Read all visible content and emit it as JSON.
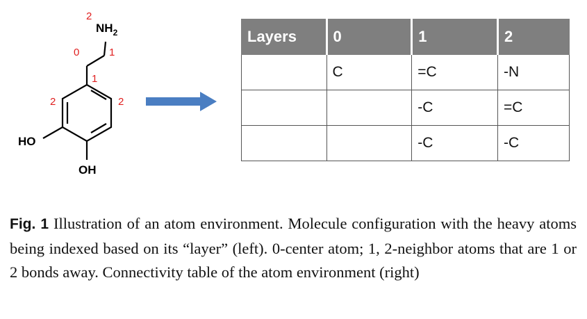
{
  "molecule": {
    "atoms": {
      "amine": "NH",
      "amine_sub": "2",
      "hydroxyl_left": "HO",
      "hydroxyl_bottom": "OH"
    },
    "layer_indices": {
      "n": "2",
      "ch2_top": "1",
      "ch2_left": "0",
      "ring_ipso": "1",
      "ring_left": "2",
      "ring_right": "2"
    }
  },
  "colors": {
    "index_red": "#e02020",
    "arrow_blue": "#4a7ec2",
    "header_gray": "#7f7f7f"
  },
  "table": {
    "headers": [
      "Layers",
      "0",
      "1",
      "2"
    ],
    "rows": [
      [
        "",
        "C",
        "=C",
        "-N"
      ],
      [
        "",
        "",
        "-C",
        "=C"
      ],
      [
        "",
        "",
        "-C",
        "-C"
      ]
    ]
  },
  "caption": {
    "label": "Fig. 1",
    "text": "Illustration of an atom environment. Molecule configuration with the heavy atoms being indexed based on its “layer” (left). 0-center atom; 1, 2-neighbor atoms that are 1 or 2 bonds away. Connectivity table of the atom environment (right)"
  }
}
